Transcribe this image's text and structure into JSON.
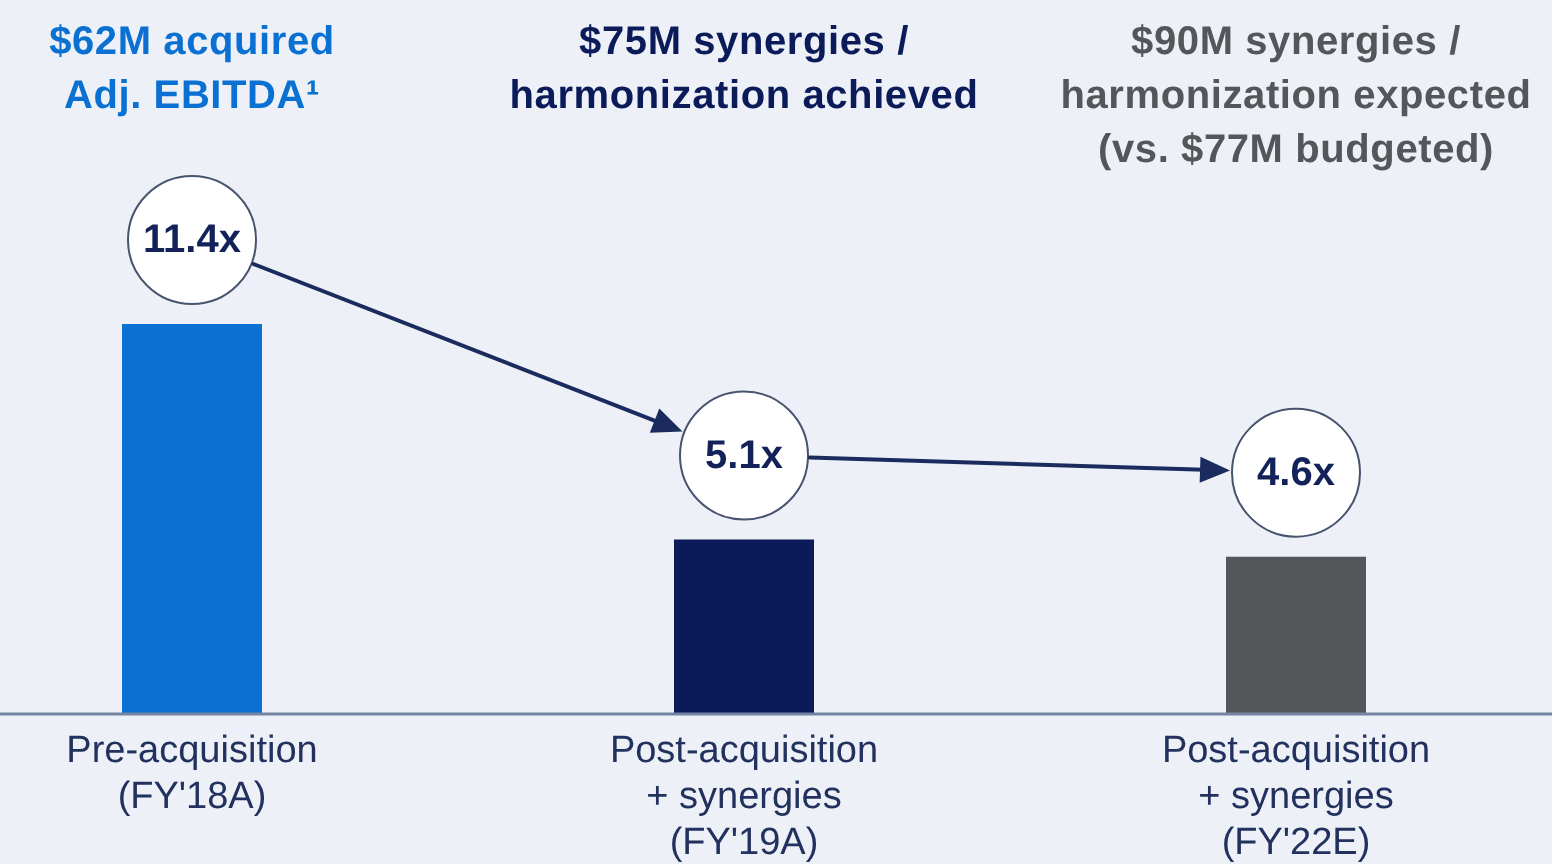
{
  "chart_data": {
    "type": "bar",
    "annotations": [
      "$62M acquired\nAdj. EBITDA¹",
      "$75M synergies /\nharmonization achieved",
      "$90M synergies /\nharmonization expected\n(vs. $77M budgeted)"
    ],
    "categories": [
      "Pre-acquisition\n(FY'18A)",
      "Post-acquisition\n+ synergies\n(FY'19A)",
      "Post-acquisition\n+ synergies\n(FY'22E)"
    ],
    "values": [
      11.4,
      5.1,
      4.6
    ],
    "colors": [
      "#0a70d2",
      "#0b1a58",
      "#54565a"
    ],
    "value_labels": [
      "11.4x",
      "5.1x",
      "4.6x"
    ]
  }
}
